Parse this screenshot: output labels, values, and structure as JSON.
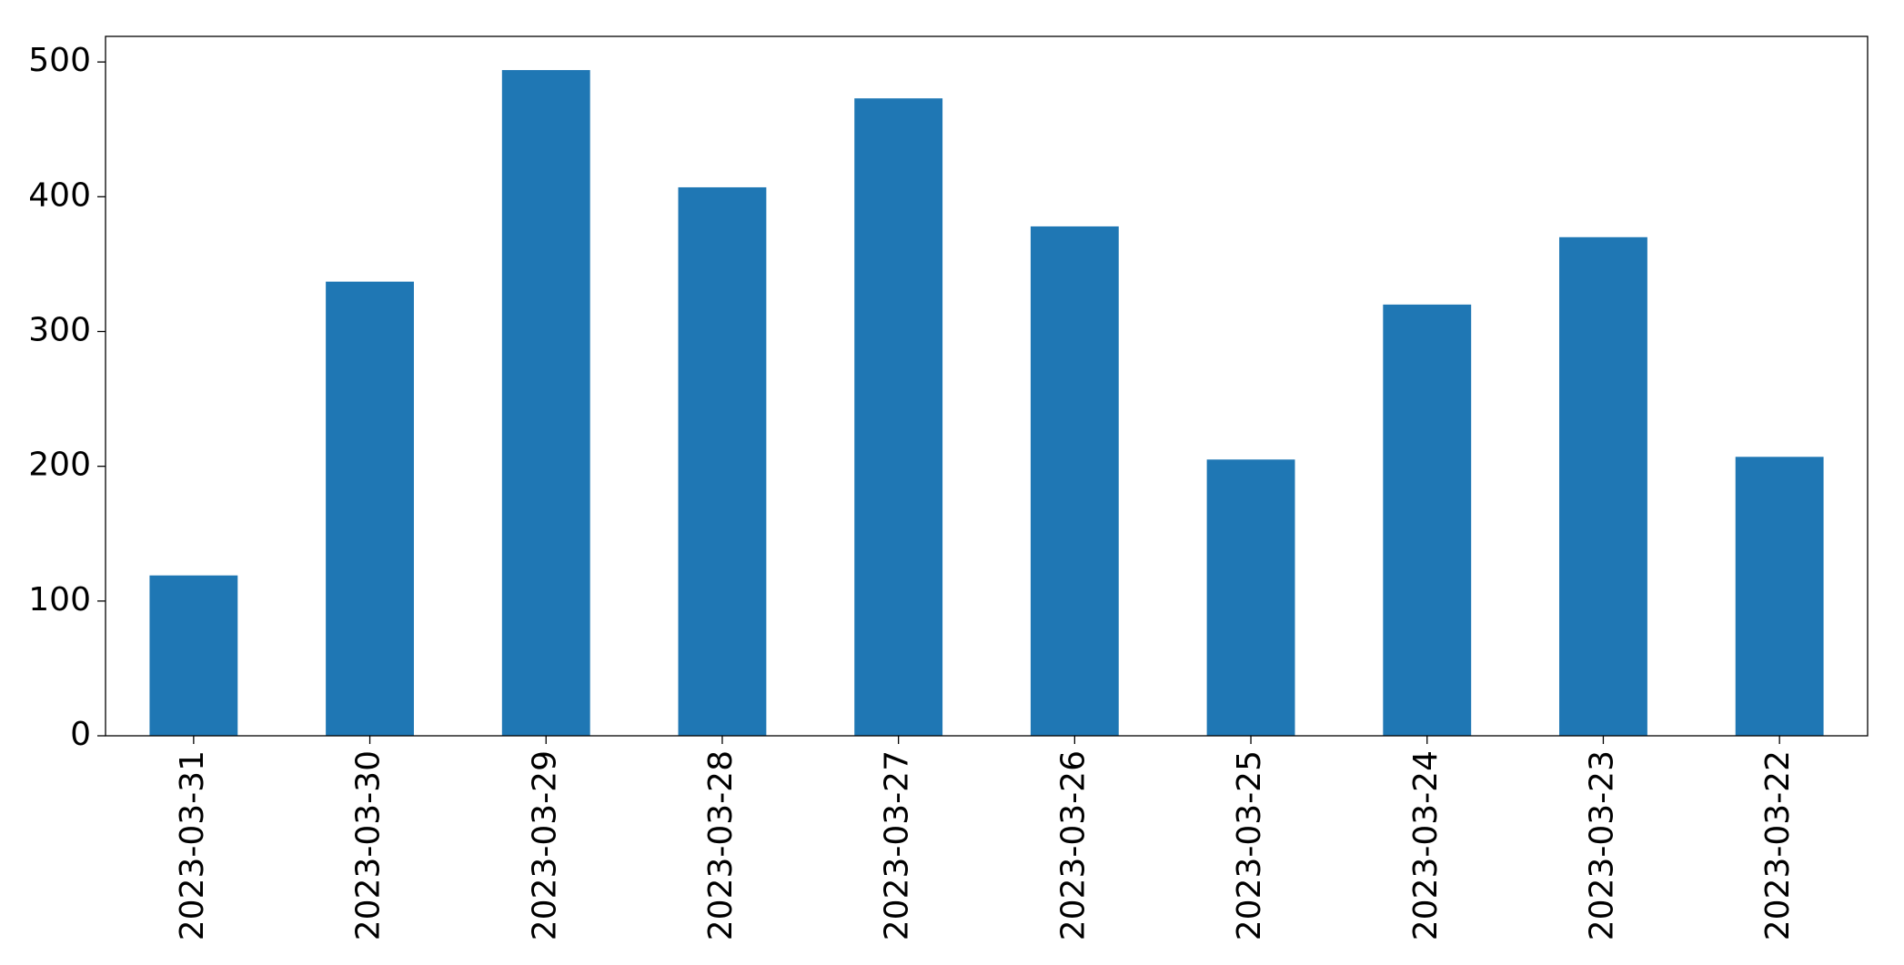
{
  "chart_data": {
    "type": "bar",
    "categories": [
      "2023-03-31",
      "2023-03-30",
      "2023-03-29",
      "2023-03-28",
      "2023-03-27",
      "2023-03-26",
      "2023-03-25",
      "2023-03-24",
      "2023-03-23",
      "2023-03-22"
    ],
    "values": [
      119,
      337,
      494,
      407,
      473,
      378,
      205,
      320,
      370,
      207
    ],
    "color": "#1f77b4",
    "ylim": [
      0,
      519
    ],
    "yticks": [
      0,
      100,
      200,
      300,
      400,
      500
    ],
    "grid": false
  }
}
